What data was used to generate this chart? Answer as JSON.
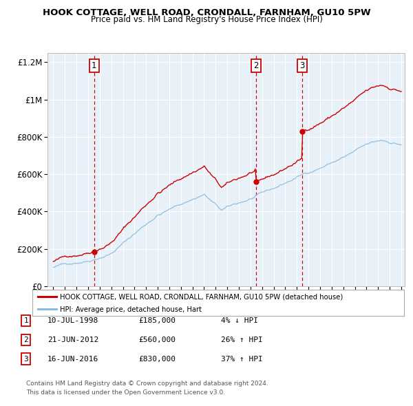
{
  "title": "HOOK COTTAGE, WELL ROAD, CRONDALL, FARNHAM, GU10 5PW",
  "subtitle": "Price paid vs. HM Land Registry's House Price Index (HPI)",
  "background_color": "#ffffff",
  "plot_bg_color": "#e8f0f8",
  "red_line_color": "#cc0000",
  "blue_line_color": "#88bbdd",
  "sale_marker_color": "#cc0000",
  "sale_dashed_color": "#cc0000",
  "ylim": [
    0,
    1250000
  ],
  "xlim_start": 1994.5,
  "xlim_end": 2025.3,
  "sales": [
    {
      "year": 1998.53,
      "price": 185000,
      "label": "1"
    },
    {
      "year": 2012.47,
      "price": 560000,
      "label": "2"
    },
    {
      "year": 2016.46,
      "price": 830000,
      "label": "3"
    }
  ],
  "legend_red": "HOOK COTTAGE, WELL ROAD, CRONDALL, FARNHAM, GU10 5PW (detached house)",
  "legend_blue": "HPI: Average price, detached house, Hart",
  "table_rows": [
    {
      "num": "1",
      "date": "10-JUL-1998",
      "price": "£185,000",
      "change": "4% ↓ HPI"
    },
    {
      "num": "2",
      "date": "21-JUN-2012",
      "price": "£560,000",
      "change": "26% ↑ HPI"
    },
    {
      "num": "3",
      "date": "16-JUN-2016",
      "price": "£830,000",
      "change": "37% ↑ HPI"
    }
  ],
  "footer": "Contains HM Land Registry data © Crown copyright and database right 2024.\nThis data is licensed under the Open Government Licence v3.0.",
  "ytick_labels": [
    "£0",
    "£200K",
    "£400K",
    "£600K",
    "£800K",
    "£1M",
    "£1.2M"
  ],
  "ytick_values": [
    0,
    200000,
    400000,
    600000,
    800000,
    1000000,
    1200000
  ]
}
